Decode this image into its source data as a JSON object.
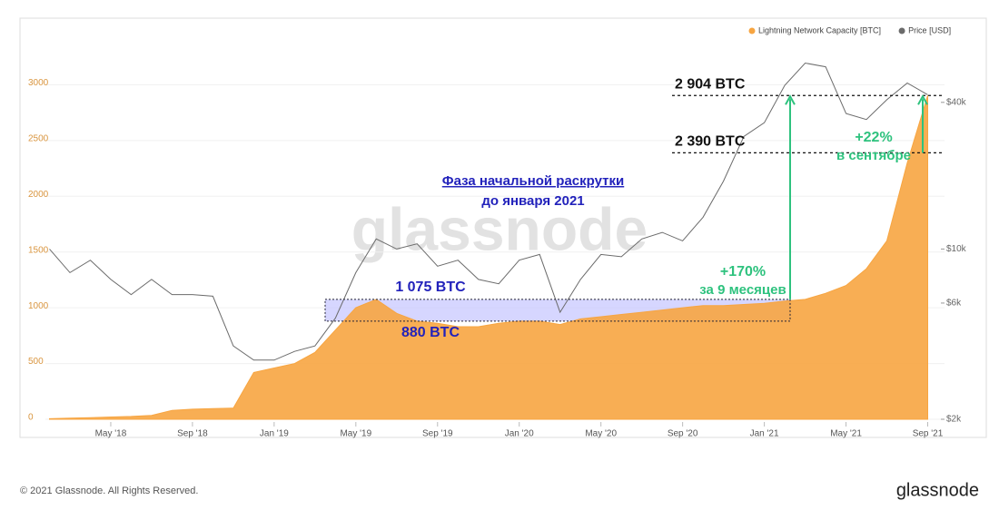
{
  "chart_data": {
    "type": "area",
    "watermark": "glassnode",
    "x": [
      "2018-02",
      "2018-03",
      "2018-04",
      "2018-05",
      "2018-06",
      "2018-07",
      "2018-08",
      "2018-09",
      "2018-10",
      "2018-11",
      "2018-12",
      "2019-01",
      "2019-02",
      "2019-03",
      "2019-04",
      "2019-05",
      "2019-06",
      "2019-07",
      "2019-08",
      "2019-09",
      "2019-10",
      "2019-11",
      "2019-12",
      "2020-01",
      "2020-02",
      "2020-03",
      "2020-04",
      "2020-05",
      "2020-06",
      "2020-07",
      "2020-08",
      "2020-09",
      "2020-10",
      "2020-11",
      "2020-12",
      "2021-01",
      "2021-02",
      "2021-03",
      "2021-04",
      "2021-05",
      "2021-06",
      "2021-07",
      "2021-08",
      "2021-09"
    ],
    "series": [
      {
        "name": "Lightning Network Capacity [BTC]",
        "color": "#f7a541",
        "type": "area",
        "values": [
          5,
          10,
          15,
          20,
          25,
          35,
          80,
          90,
          95,
          100,
          420,
          460,
          500,
          600,
          800,
          1000,
          1075,
          950,
          880,
          860,
          830,
          830,
          860,
          880,
          880,
          850,
          900,
          920,
          940,
          960,
          980,
          1000,
          1020,
          1020,
          1030,
          1040,
          1060,
          1075,
          1130,
          1200,
          1350,
          1600,
          2300,
          2904
        ]
      },
      {
        "name": "Price [USD]",
        "color": "#6b6b6b",
        "type": "line",
        "axis": "y2",
        "values": [
          10000,
          8000,
          9000,
          7500,
          6500,
          7500,
          6500,
          6500,
          6400,
          4000,
          3500,
          3500,
          3800,
          4000,
          5200,
          8000,
          11000,
          10000,
          10500,
          8500,
          9000,
          7500,
          7200,
          9000,
          9500,
          5500,
          7500,
          9500,
          9300,
          11000,
          11700,
          10800,
          13500,
          19000,
          29000,
          33000,
          47000,
          58000,
          56000,
          36000,
          34000,
          41000,
          48000,
          43000
        ]
      }
    ],
    "xlim": [
      "2018-01",
      "2021-10"
    ],
    "xticks": [
      {
        "value": "2018-05",
        "label": "May '18"
      },
      {
        "value": "2018-09",
        "label": "Sep '18"
      },
      {
        "value": "2019-01",
        "label": "Jan '19"
      },
      {
        "value": "2019-05",
        "label": "May '19"
      },
      {
        "value": "2019-09",
        "label": "Sep '19"
      },
      {
        "value": "2020-01",
        "label": "Jan '20"
      },
      {
        "value": "2020-05",
        "label": "May '20"
      },
      {
        "value": "2020-09",
        "label": "Sep '20"
      },
      {
        "value": "2021-01",
        "label": "Jan '21"
      },
      {
        "value": "2021-05",
        "label": "May '21"
      },
      {
        "value": "2021-09",
        "label": "Sep '21"
      }
    ],
    "ylim": [
      0,
      3500
    ],
    "yticks": [
      0,
      500,
      1000,
      1500,
      2000,
      2500,
      3000
    ],
    "y2lim": [
      2000,
      80000
    ],
    "y2scale": "log",
    "y2ticks": [
      {
        "value": 2000,
        "label": "$2k"
      },
      {
        "value": 6000,
        "label": "$6k"
      },
      {
        "value": 10000,
        "label": "$10k"
      },
      {
        "value": 40000,
        "label": "$40k"
      }
    ],
    "grid": true,
    "legend": "top-right",
    "reference_lines": [
      {
        "value": 2904,
        "label": "2 904 BTC"
      },
      {
        "value": 2390,
        "label": "2 390 BTC"
      }
    ],
    "box": {
      "high": {
        "value": 1075,
        "label": "1 075 BTC"
      },
      "low": {
        "value": 880,
        "label": "880 BTC"
      }
    },
    "phase_note": [
      "Фаза начальной раскрутки",
      "до января 2021"
    ],
    "growth": [
      {
        "label": "+170%",
        "note": "за 9 месяцев"
      },
      {
        "label": "+22%",
        "note": "в сентябре"
      }
    ]
  },
  "footer": {
    "copyright": "© 2021 Glassnode. All Rights Reserved.",
    "logo": "glassnode"
  }
}
